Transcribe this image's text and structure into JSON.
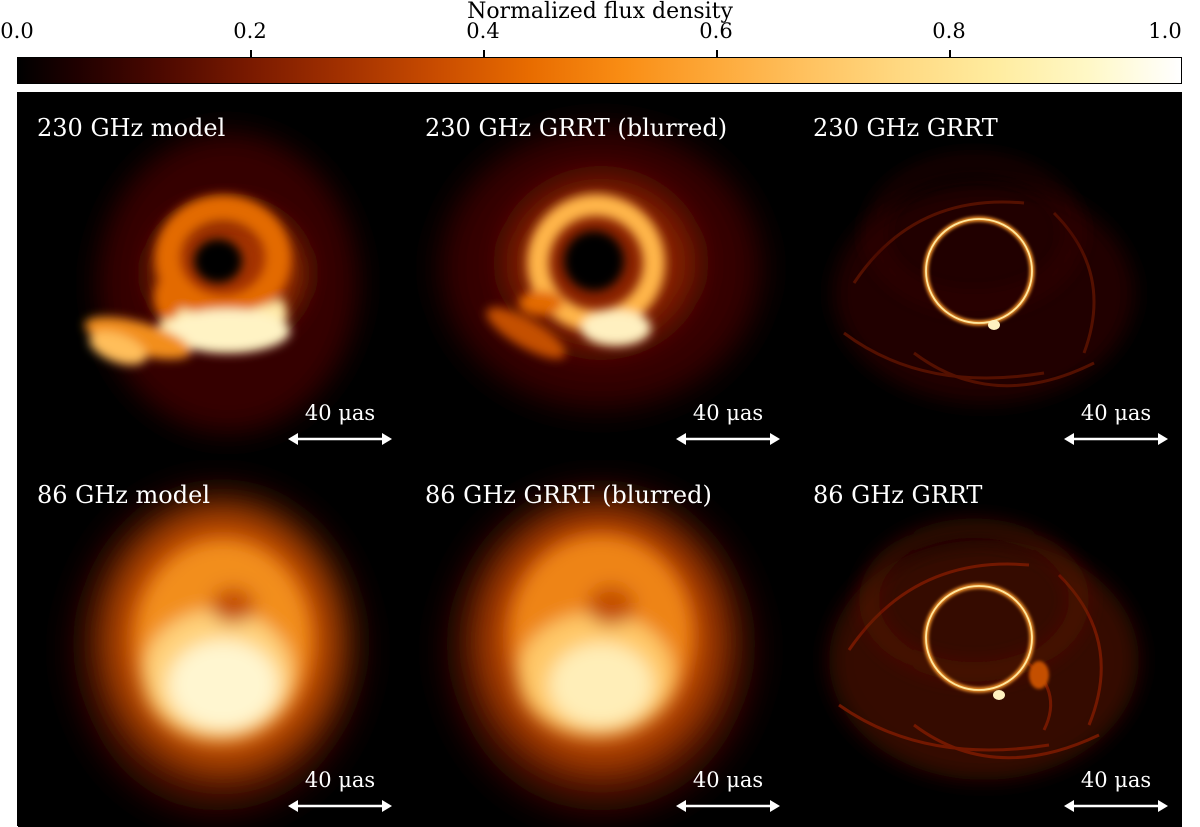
{
  "colorbar": {
    "label": "Normalized flux density",
    "ticks": [
      "0.0",
      "0.2",
      "0.4",
      "0.6",
      "0.8",
      "1.0"
    ],
    "colormap": "afmhot",
    "range": [
      0.0,
      1.0
    ]
  },
  "panels": [
    {
      "label": "230 GHz model",
      "scale_label": "40 μas"
    },
    {
      "label": "230 GHz GRRT (blurred)",
      "scale_label": "40 μas"
    },
    {
      "label": "230 GHz GRRT",
      "scale_label": "40 μas"
    },
    {
      "label": "86 GHz model",
      "scale_label": "40 μas"
    },
    {
      "label": "86 GHz GRRT (blurred)",
      "scale_label": "40 μas"
    },
    {
      "label": "86 GHz GRRT",
      "scale_label": "40 μas"
    }
  ],
  "colors": {
    "background": "#000000",
    "ring": "#ffd27a",
    "glow": "#ff8a1a"
  }
}
